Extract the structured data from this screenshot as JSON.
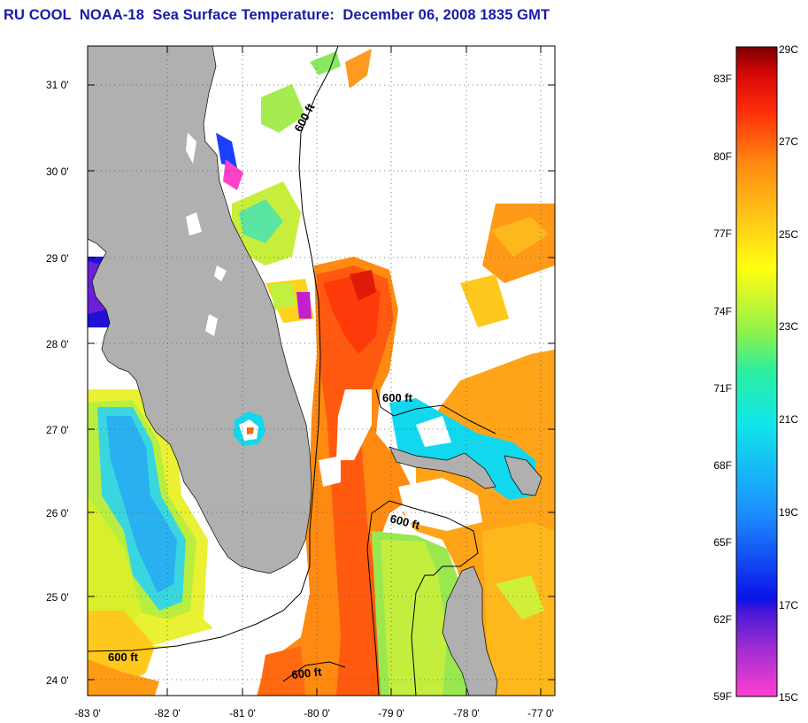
{
  "title": "RU COOL  NOAA-18  Sea Surface Temperature:  December 06, 2008 1835 GMT",
  "map": {
    "lat_labels": [
      "31 0'",
      "30 0'",
      "29 0'",
      "28 0'",
      "27 0'",
      "26 0'",
      "25 0'",
      "24 0'"
    ],
    "lon_labels": [
      "-83 0'",
      "-82 0'",
      "-81 0'",
      "-80 0'",
      "-79 0'",
      "-78 0'",
      "-77 0'"
    ],
    "isobath_labels": [
      "600 ft",
      "600 ft",
      "600 ft",
      "600 ft",
      "600 ft"
    ]
  },
  "colorbar": {
    "fahrenheit_labels": [
      "83F",
      "80F",
      "77F",
      "74F",
      "71F",
      "68F",
      "65F",
      "62F",
      "59F"
    ],
    "celsius_labels": [
      "29C",
      "27C",
      "25C",
      "23C",
      "21C",
      "19C",
      "17C",
      "15C"
    ],
    "colors": {
      "c15": "#ff3fd0",
      "c16": "#8a1fd0",
      "c17": "#0a12e8",
      "c19": "#1c8cff",
      "c21": "#12e6ea",
      "c22": "#2aeea0",
      "c23": "#c2f52a",
      "c24": "#ffff10",
      "c25": "#ffc418",
      "c26": "#ff8a10",
      "c27": "#ff2e0a",
      "c29": "#7a0000"
    }
  },
  "colors": {
    "land": "#b0b0b0",
    "title": "#1a1aa8"
  }
}
